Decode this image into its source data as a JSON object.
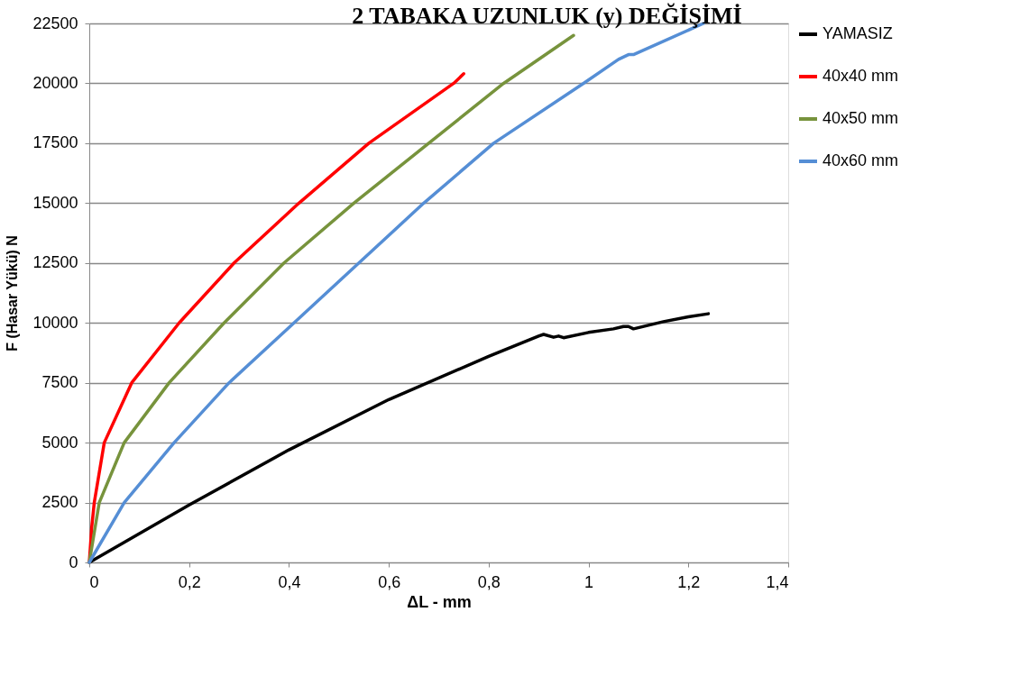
{
  "chart_data": {
    "type": "line",
    "title": "2 TABAKA UZUNLUK (y) DEĞİŞİMİ",
    "xlabel": "ΔL - mm",
    "ylabel": "F (Hasar Yükü)  N",
    "xlim": [
      0,
      1.4
    ],
    "xticks": [
      0,
      {
        "value": 0.2,
        "label": "0,2"
      },
      {
        "value": 0.4,
        "label": "0,4"
      },
      {
        "value": 0.6,
        "label": "0,6"
      },
      {
        "value": 0.8,
        "label": "0,8"
      },
      1,
      {
        "value": 1.2,
        "label": "1,2"
      },
      {
        "value": 1.4,
        "label": "1,4"
      }
    ],
    "ylim": [
      0,
      22500
    ],
    "yticks": [
      0,
      2500,
      5000,
      7500,
      10000,
      12500,
      15000,
      17500,
      20000,
      22500
    ],
    "grid": "y",
    "legend": "right",
    "marker": "none",
    "line_style": "solid",
    "series": [
      {
        "name": "YAMASIZ",
        "color": "#000000",
        "x": [
          0,
          0.2,
          0.4,
          0.6,
          0.8,
          0.9,
          0.91,
          0.93,
          0.94,
          0.95,
          1.0,
          1.05,
          1.07,
          1.08,
          1.09,
          1.15,
          1.2,
          1.24
        ],
        "values": [
          0,
          2400,
          4700,
          6800,
          8600,
          9450,
          9520,
          9400,
          9450,
          9380,
          9600,
          9750,
          9850,
          9850,
          9750,
          10050,
          10250,
          10380
        ]
      },
      {
        "name": "40x40 mm",
        "color": "#ff0000",
        "x": [
          0,
          0.005,
          0.01,
          0.03,
          0.085,
          0.18,
          0.29,
          0.42,
          0.56,
          0.73,
          0.75
        ],
        "values": [
          0,
          1500,
          2500,
          5000,
          7500,
          10000,
          12500,
          15000,
          17500,
          20000,
          20400
        ]
      },
      {
        "name": "40x50 mm",
        "color": "#77933c",
        "x": [
          0,
          0.02,
          0.07,
          0.16,
          0.27,
          0.39,
          0.53,
          0.68,
          0.83,
          0.97
        ],
        "values": [
          0,
          2500,
          5000,
          7500,
          10000,
          12500,
          15000,
          17500,
          20000,
          22000
        ]
      },
      {
        "name": "40x60 mm",
        "color": "#558ed5",
        "x": [
          0,
          0.07,
          0.17,
          0.28,
          0.41,
          0.54,
          0.67,
          0.81,
          0.99,
          1.06,
          1.08,
          1.09,
          1.23
        ],
        "values": [
          0,
          2500,
          5000,
          7500,
          10000,
          12500,
          15000,
          17500,
          20000,
          21000,
          21200,
          21200,
          22500
        ]
      }
    ]
  }
}
